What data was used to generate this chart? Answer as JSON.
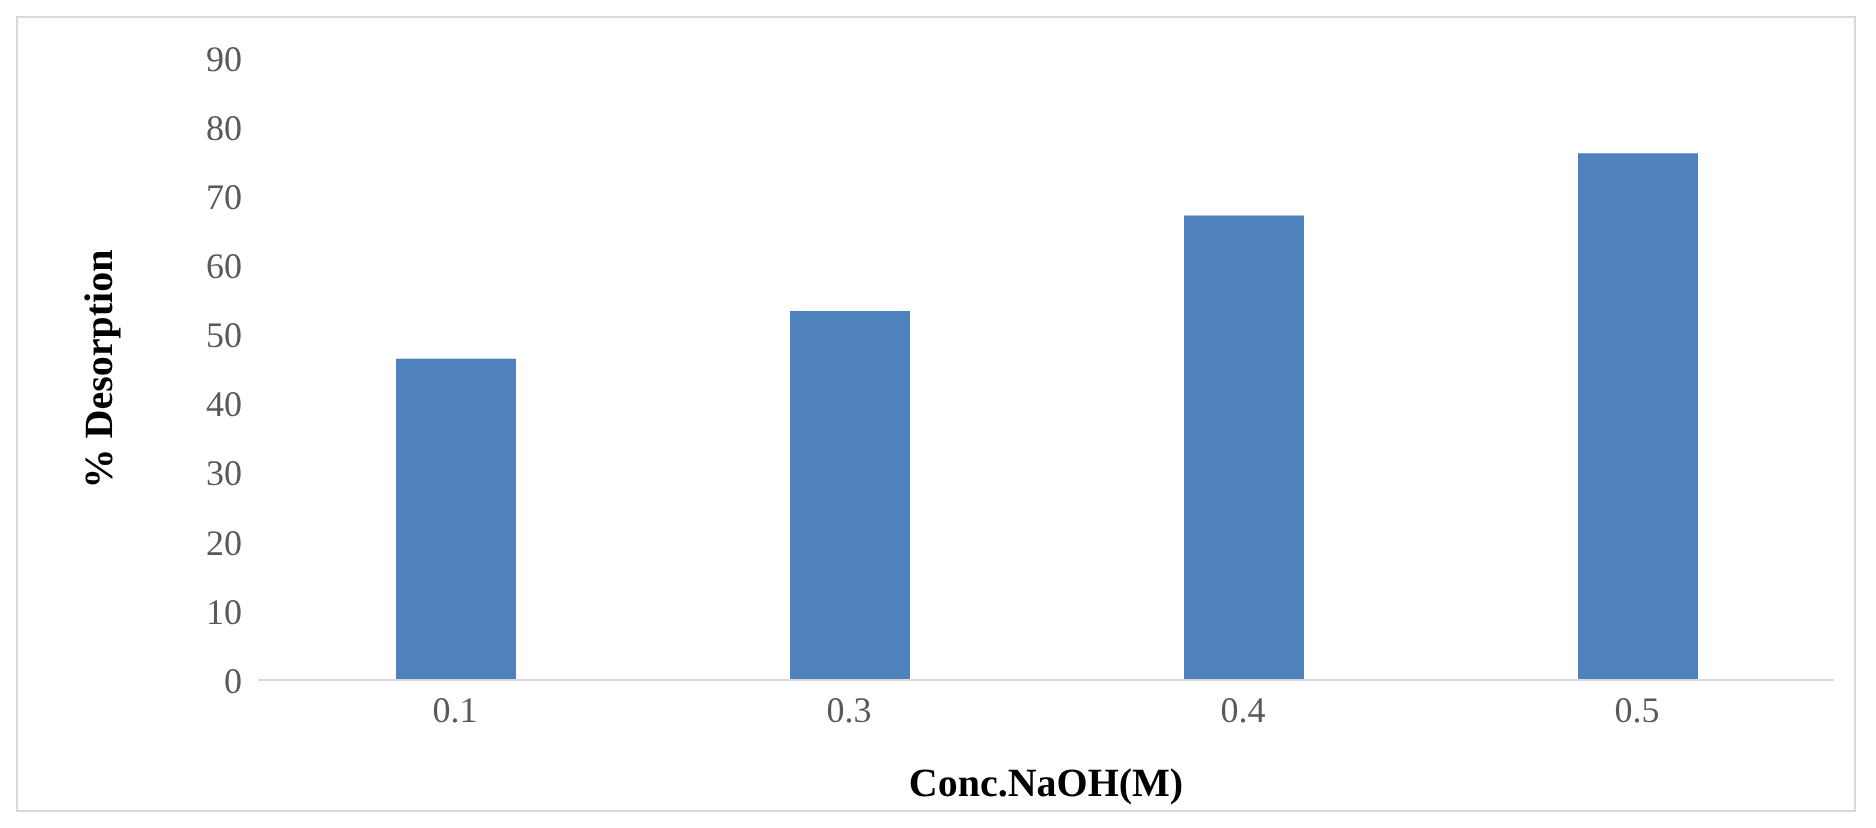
{
  "chart_data": {
    "type": "bar",
    "xlabel": "Conc.NaOH(M)",
    "ylabel": "% Desorption",
    "categories": [
      "0.1",
      "0.3",
      "0.4",
      "0.5"
    ],
    "values": [
      46.5,
      53.4,
      67.2,
      76.2
    ],
    "color": "#4f81bd",
    "ylim": [
      0,
      90
    ],
    "yticks": [
      0,
      10,
      20,
      30,
      40,
      50,
      60,
      70,
      80,
      90
    ],
    "grid": false,
    "legend": false
  }
}
